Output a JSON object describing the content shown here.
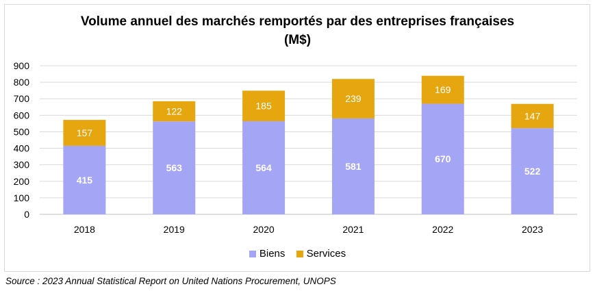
{
  "chart_data": {
    "type": "bar",
    "stacked": true,
    "title": "Volume annuel des marchés remportés par des entreprises françaises",
    "title_unit": "(M$)",
    "categories": [
      "2018",
      "2019",
      "2020",
      "2021",
      "2022",
      "2023"
    ],
    "series": [
      {
        "name": "Biens",
        "color": "#a5a5f5",
        "label_color": "#ffffff",
        "values": [
          415,
          563,
          564,
          581,
          670,
          522
        ]
      },
      {
        "name": "Services",
        "color": "#e6a610",
        "label_color": "#ffffff",
        "values": [
          157,
          122,
          185,
          239,
          169,
          147
        ]
      }
    ],
    "y_ticks": [
      "0",
      "100",
      "200",
      "300",
      "400",
      "500",
      "600",
      "700",
      "800",
      "900"
    ],
    "ylim": [
      0,
      900
    ],
    "grid": true,
    "legend_position": "bottom"
  },
  "source": "Source : 2023 Annual Statistical Report on United Nations Procurement, UNOPS"
}
